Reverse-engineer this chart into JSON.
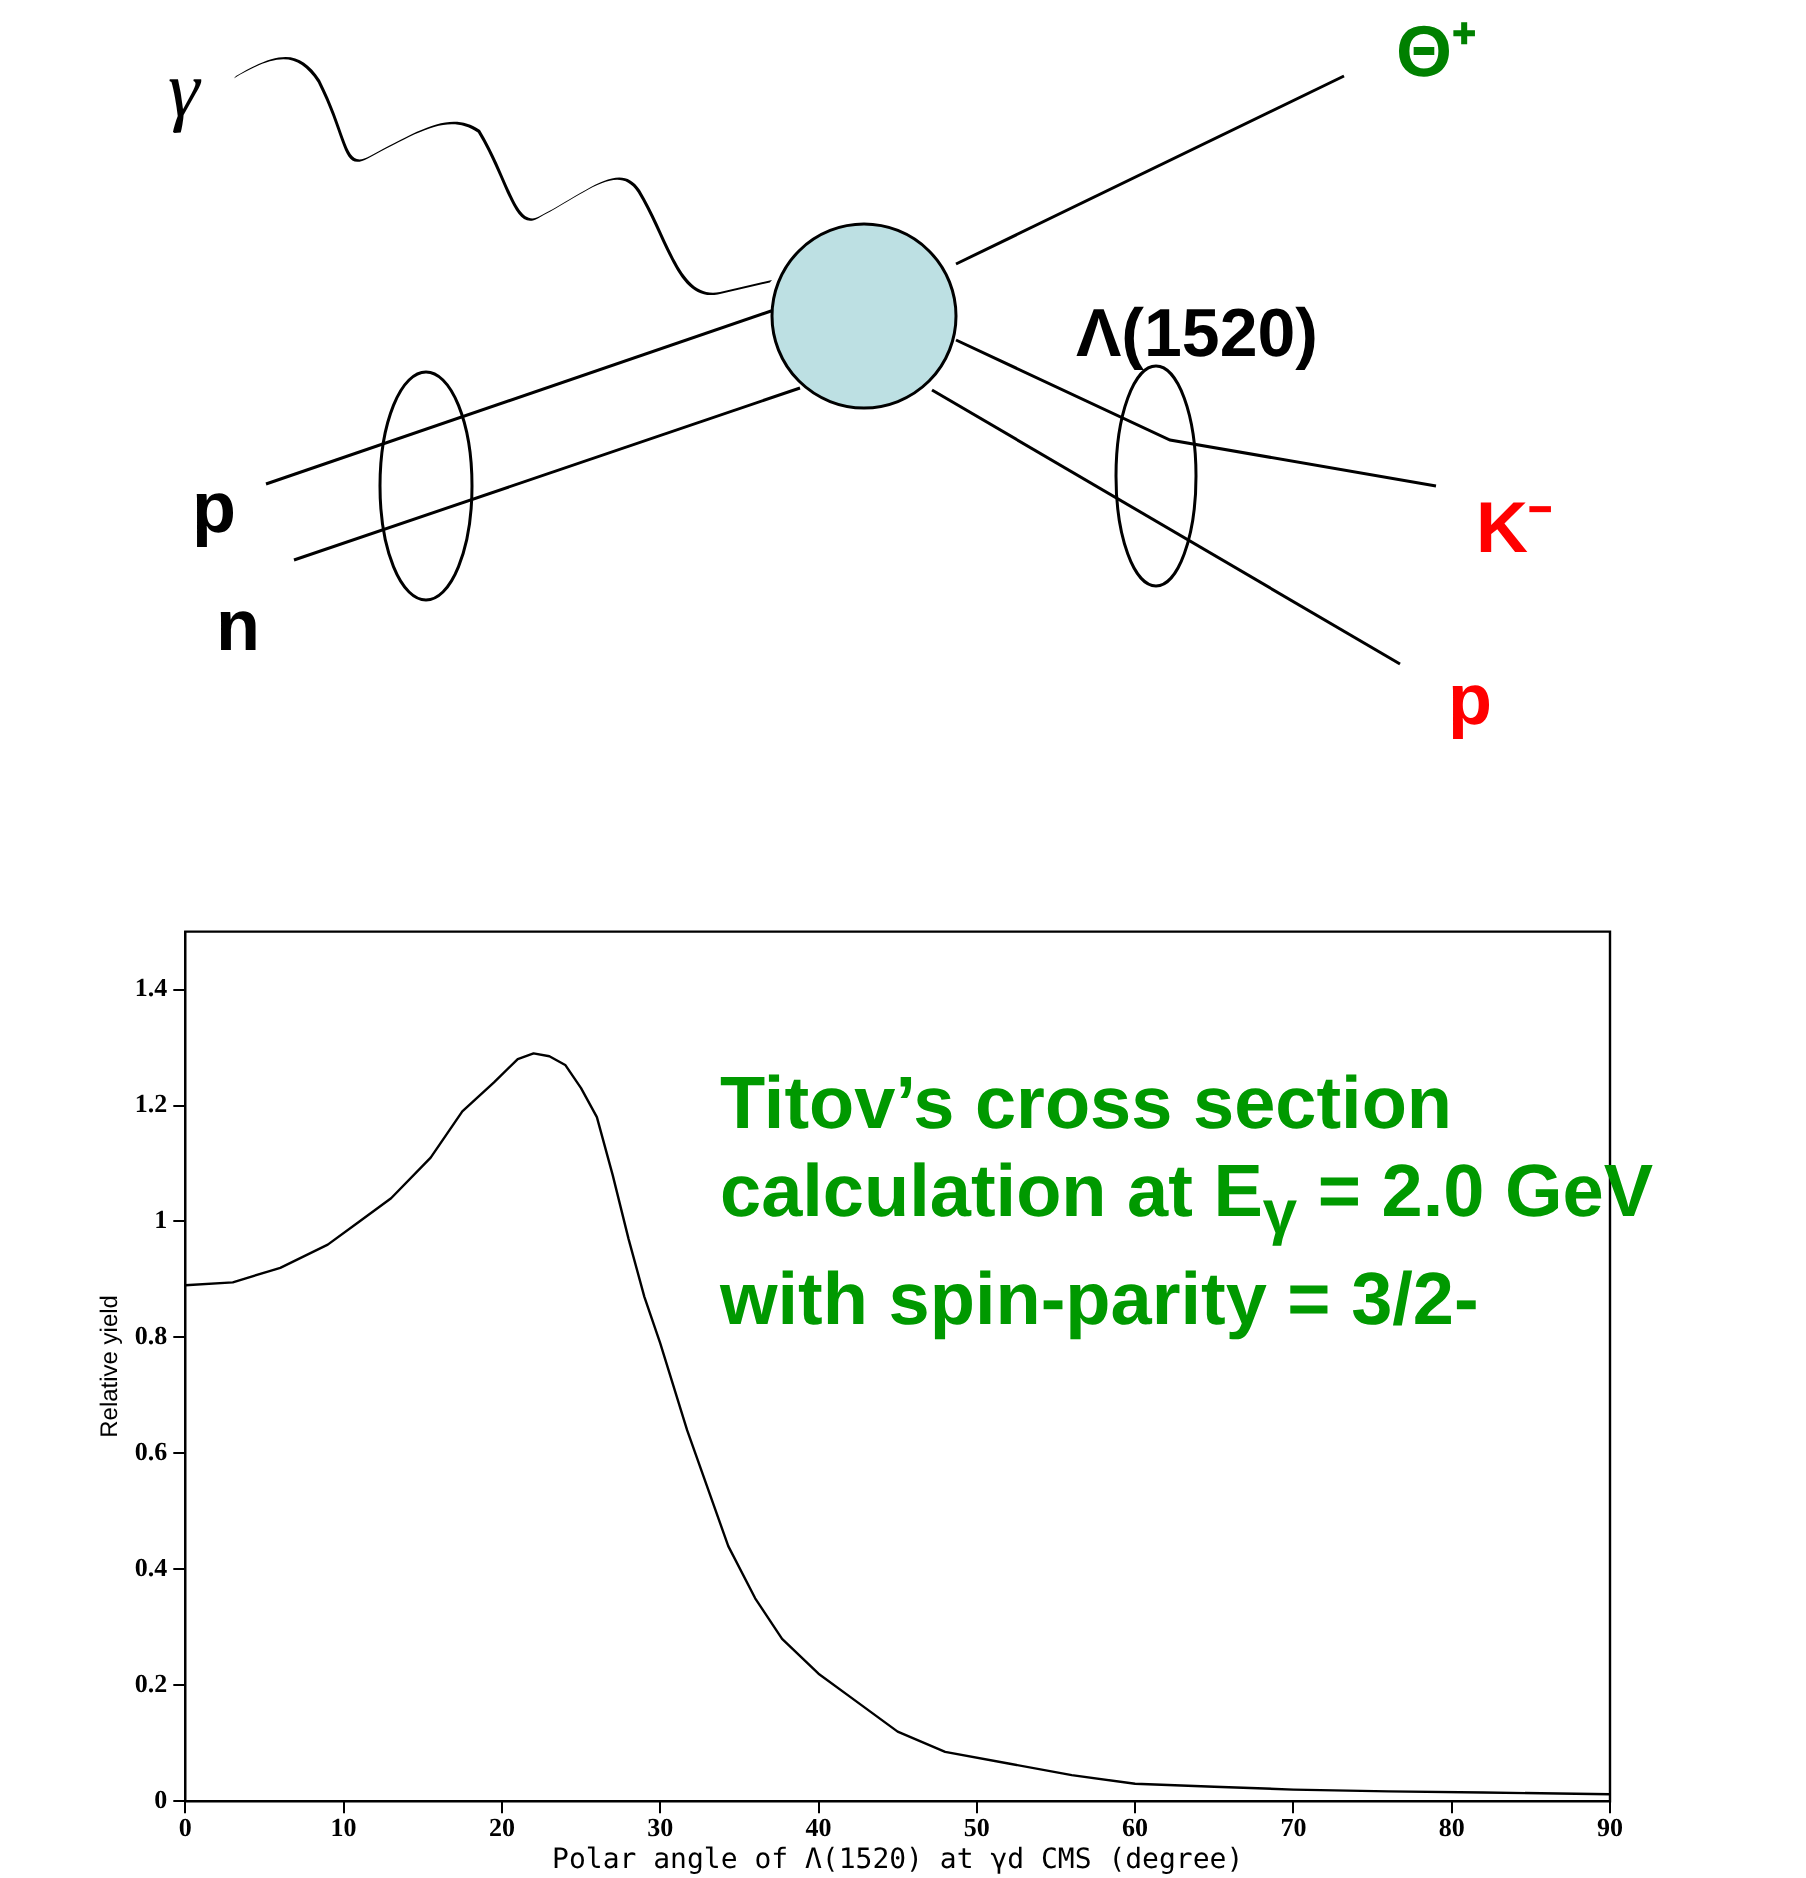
{
  "chart_data": {
    "type": "line",
    "ylabel": "Relative yield",
    "xlabel": "Polar angle of Λ(1520) at γd CMS (degree)",
    "annotations": [
      "γ",
      "Θ⁺",
      "Λ(1520)",
      "p",
      "n",
      "K⁻",
      "p",
      "Titov’s cross section calculation at E$_{γ}$ = 2.0 GeV with spin-parity = 3/2-"
    ],
    "series": [
      {
        "color": "#000000",
        "x": [
          0,
          3,
          6,
          9,
          11,
          13,
          15.5,
          17.5,
          19.5,
          21,
          22,
          23,
          24,
          25,
          26,
          27,
          28,
          29,
          30,
          31.7,
          34.3,
          36,
          37.7,
          40,
          42,
          45,
          48,
          52,
          56,
          60,
          65,
          70,
          76,
          82,
          90
        ],
        "values": [
          0.89,
          0.895,
          0.92,
          0.96,
          1.0,
          1.04,
          1.11,
          1.19,
          1.24,
          1.28,
          1.29,
          1.285,
          1.27,
          1.23,
          1.18,
          1.08,
          0.97,
          0.87,
          0.79,
          0.64,
          0.44,
          0.35,
          0.28,
          0.22,
          0.18,
          0.12,
          0.085,
          0.065,
          0.045,
          0.03,
          0.025,
          0.02,
          0.017,
          0.015,
          0.012
        ]
      }
    ],
    "xlim": [
      0,
      90
    ],
    "xticks": [
      0,
      10,
      20,
      30,
      40,
      50,
      60,
      70,
      80,
      90
    ],
    "ylim": [
      0,
      1.5
    ],
    "yticks": [
      0,
      0.2,
      0.4,
      0.6,
      0.8,
      1,
      1.2,
      1.4
    ],
    "grid": false,
    "legend": false,
    "marker": "none",
    "line_style": "solid"
  }
}
